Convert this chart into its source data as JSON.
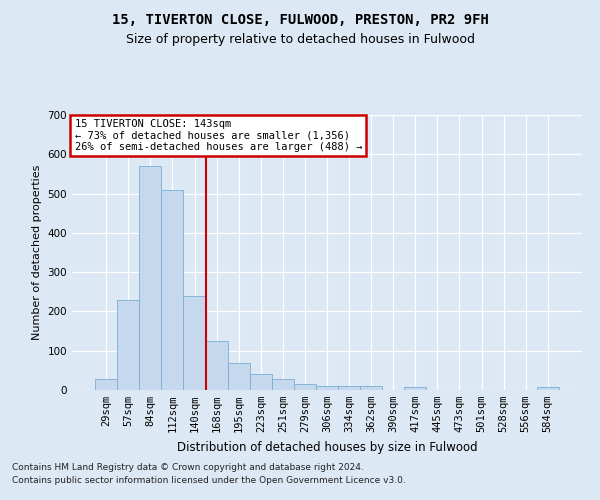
{
  "title1": "15, TIVERTON CLOSE, FULWOOD, PRESTON, PR2 9FH",
  "title2": "Size of property relative to detached houses in Fulwood",
  "xlabel": "Distribution of detached houses by size in Fulwood",
  "ylabel": "Number of detached properties",
  "categories": [
    "29sqm",
    "57sqm",
    "84sqm",
    "112sqm",
    "140sqm",
    "168sqm",
    "195sqm",
    "223sqm",
    "251sqm",
    "279sqm",
    "306sqm",
    "334sqm",
    "362sqm",
    "390sqm",
    "417sqm",
    "445sqm",
    "473sqm",
    "501sqm",
    "528sqm",
    "556sqm",
    "584sqm"
  ],
  "values": [
    27,
    230,
    570,
    510,
    240,
    125,
    70,
    42,
    27,
    15,
    10,
    10,
    10,
    0,
    7,
    0,
    0,
    0,
    0,
    0,
    7
  ],
  "bar_color": "#c5d8ee",
  "bar_edge_color": "#7aafd4",
  "vline_index": 4,
  "vline_color": "#cc0000",
  "annotation_line1": "15 TIVERTON CLOSE: 143sqm",
  "annotation_line2": "← 73% of detached houses are smaller (1,356)",
  "annotation_line3": "26% of semi-detached houses are larger (488) →",
  "annotation_box_facecolor": "#ffffff",
  "annotation_box_edgecolor": "#cc0000",
  "footer1": "Contains HM Land Registry data © Crown copyright and database right 2024.",
  "footer2": "Contains public sector information licensed under the Open Government Licence v3.0.",
  "ylim_max": 700,
  "yticks": [
    0,
    100,
    200,
    300,
    400,
    500,
    600,
    700
  ],
  "fig_bg_color": "#dce8f4",
  "plot_bg_color": "#dce8f4",
  "grid_color": "#ffffff",
  "title1_fontsize": 10,
  "title2_fontsize": 9,
  "xlabel_fontsize": 8.5,
  "ylabel_fontsize": 8,
  "tick_fontsize": 7.5,
  "ann_fontsize": 7.5,
  "footer_fontsize": 6.5
}
